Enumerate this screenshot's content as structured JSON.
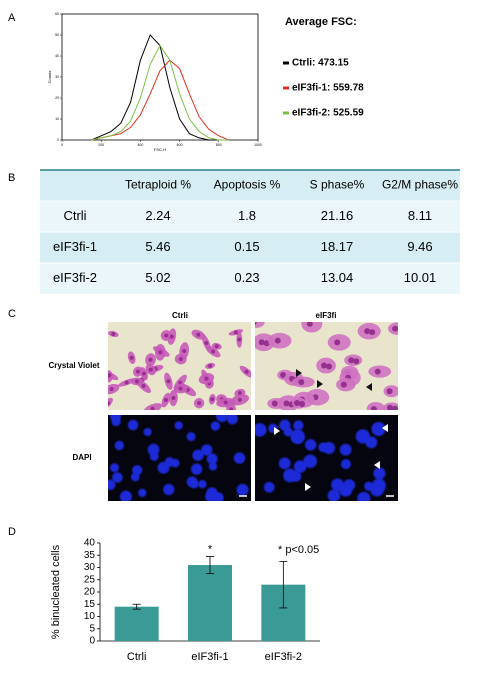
{
  "panel_labels": [
    "A",
    "B",
    "C",
    "D"
  ],
  "chart_data": [
    {
      "type": "histogram_lines",
      "xlabel": "FSC-H",
      "ylabel": "Counts",
      "x": [
        150,
        200,
        250,
        300,
        350,
        400,
        450,
        500,
        550,
        600,
        650,
        700,
        750,
        800,
        850
      ],
      "series": [
        {
          "name": "Ctrli: 473.15",
          "color": "#000000",
          "values": [
            0,
            2,
            4,
            8,
            18,
            38,
            50,
            45,
            25,
            10,
            3,
            1,
            0,
            0,
            0
          ]
        },
        {
          "name": "eIF3fi-1: 559.78",
          "color": "#e0301e",
          "values": [
            0,
            1,
            2,
            3,
            6,
            12,
            22,
            33,
            38,
            34,
            22,
            11,
            5,
            2,
            0
          ]
        },
        {
          "name": "eIF3fi-2: 525.59",
          "color": "#7ac143",
          "values": [
            0,
            1,
            2,
            4,
            9,
            20,
            36,
            45,
            38,
            22,
            10,
            4,
            1,
            0,
            0
          ]
        }
      ],
      "legend_title": "Average FSC:",
      "xlim": [
        0,
        1000
      ],
      "xticks": [
        0,
        200,
        400,
        600,
        800,
        1000
      ],
      "ylim": [
        0,
        60
      ],
      "yticks": [
        0,
        10,
        20,
        30,
        40,
        50,
        60
      ]
    },
    {
      "type": "bar",
      "ylabel": "% binucleated cells",
      "categories": [
        "Ctrli",
        "eIF3fi-1",
        "eIF3fi-2"
      ],
      "values": [
        14,
        31,
        23
      ],
      "errors": [
        1,
        3.5,
        9.5
      ],
      "color": "#3a9a96",
      "ylim": [
        0,
        40
      ],
      "yticks": [
        0,
        5,
        10,
        15,
        20,
        25,
        30,
        35,
        40
      ],
      "annotations": [
        "*",
        "* p<0.05"
      ]
    }
  ],
  "table": {
    "columns": [
      "Tetraploid %",
      "Apoptosis %",
      "S phase%",
      "G2/M phase%"
    ],
    "rows": [
      {
        "label": "Ctrli",
        "cells": [
          2.24,
          1.8,
          21.16,
          8.11
        ]
      },
      {
        "label": "eIF3fi-1",
        "cells": [
          5.46,
          0.15,
          18.17,
          9.46
        ]
      },
      {
        "label": "eIF3fi-2",
        "cells": [
          5.02,
          0.23,
          13.04,
          10.01
        ]
      }
    ]
  },
  "micrographs": {
    "columns": [
      "Ctrli",
      "eIF3fi"
    ],
    "rows": [
      "Crystal Violet",
      "DAPI"
    ]
  }
}
